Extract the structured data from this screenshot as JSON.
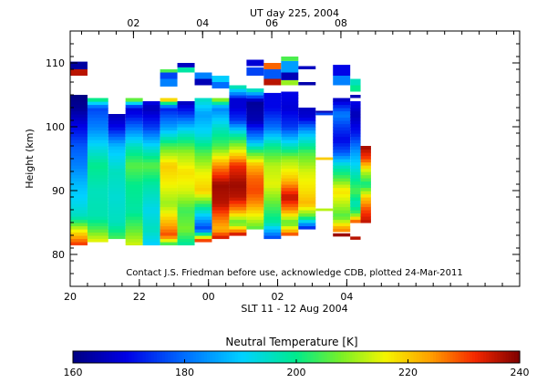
{
  "chart_data": {
    "type": "heatmap",
    "title_top": "UT day 225, 2004",
    "xlabel": "SLT 11 - 12 Aug 2004",
    "ylabel": "Height (km)",
    "note": "Contact J.S. Friedman before use, acknowledge CDB, plotted 24-Mar-2011",
    "x_range_hours": [
      20,
      33
    ],
    "ylim": [
      75,
      115
    ],
    "y_ticks": [
      80,
      90,
      100,
      110
    ],
    "bottom_x_ticks": [
      {
        "value": 20,
        "label": "20"
      },
      {
        "value": 22,
        "label": "22"
      },
      {
        "value": 24,
        "label": "00"
      },
      {
        "value": 26,
        "label": "02"
      },
      {
        "value": 28,
        "label": "04"
      }
    ],
    "top_x_ticks": [
      {
        "value": 21.83,
        "label": "02"
      },
      {
        "value": 23.83,
        "label": "04"
      },
      {
        "value": 25.83,
        "label": "06"
      },
      {
        "value": 27.83,
        "label": "08"
      }
    ],
    "colorbar": {
      "label": "Neutral Temperature [K]",
      "min": 160,
      "max": 240,
      "ticks": [
        160,
        180,
        200,
        220,
        240
      ]
    },
    "columns": [
      {
        "x0": 20.0,
        "x1": 20.5,
        "profile": [
          [
            81.5,
            232
          ],
          [
            83,
            222
          ],
          [
            84,
            214
          ],
          [
            85,
            204
          ],
          [
            86,
            196
          ],
          [
            88,
            192
          ],
          [
            91,
            188
          ],
          [
            94,
            182
          ],
          [
            97,
            178
          ],
          [
            100,
            170
          ],
          [
            103,
            162
          ],
          [
            105,
            160
          ]
        ],
        "extras": [
          [
            108,
            109,
            236
          ],
          [
            109,
            110.2,
            163
          ]
        ]
      },
      {
        "x0": 20.5,
        "x1": 21.1,
        "profile": [
          [
            82,
            216
          ],
          [
            84,
            205
          ],
          [
            86,
            197
          ],
          [
            90,
            196
          ],
          [
            94,
            200
          ],
          [
            97,
            192
          ],
          [
            100,
            182
          ],
          [
            103,
            176
          ],
          [
            104.5,
            205
          ]
        ],
        "extras": []
      },
      {
        "x0": 21.1,
        "x1": 21.6,
        "profile": [
          [
            82.5,
            205
          ],
          [
            85,
            196
          ],
          [
            89,
            194
          ],
          [
            93,
            196
          ],
          [
            97,
            188
          ],
          [
            100,
            170
          ],
          [
            102,
            165
          ]
        ],
        "extras": []
      },
      {
        "x0": 21.6,
        "x1": 22.1,
        "profile": [
          [
            81.5,
            214
          ],
          [
            84,
            206
          ],
          [
            87,
            198
          ],
          [
            91,
            200
          ],
          [
            94,
            206
          ],
          [
            97,
            196
          ],
          [
            100,
            180
          ],
          [
            102,
            170
          ],
          [
            103,
            168
          ],
          [
            104.5,
            214
          ]
        ],
        "extras": []
      },
      {
        "x0": 22.1,
        "x1": 22.6,
        "profile": [
          [
            81.5,
            190
          ],
          [
            84,
            196
          ],
          [
            87,
            192
          ],
          [
            91,
            198
          ],
          [
            94,
            206
          ],
          [
            97,
            192
          ],
          [
            100,
            175
          ],
          [
            103,
            165
          ],
          [
            104,
            170
          ]
        ],
        "extras": []
      },
      {
        "x0": 22.6,
        "x1": 23.1,
        "profile": [
          [
            81.5,
            200
          ],
          [
            83,
            230
          ],
          [
            85,
            222
          ],
          [
            88,
            210
          ],
          [
            91,
            216
          ],
          [
            94,
            220
          ],
          [
            97,
            205
          ],
          [
            100,
            185
          ],
          [
            103,
            172
          ],
          [
            104.5,
            228
          ]
        ],
        "extras": [
          [
            106.3,
            107.5,
            182
          ],
          [
            107.5,
            108.5,
            176
          ],
          [
            108.5,
            109,
            205
          ]
        ]
      },
      {
        "x0": 23.1,
        "x1": 23.6,
        "profile": [
          [
            81.5,
            198
          ],
          [
            84,
            208
          ],
          [
            87,
            204
          ],
          [
            90,
            214
          ],
          [
            93,
            218
          ],
          [
            96,
            210
          ],
          [
            99,
            195
          ],
          [
            102,
            175
          ],
          [
            104,
            165
          ]
        ],
        "extras": [
          [
            108.5,
            109.3,
            198
          ],
          [
            109.3,
            110,
            166
          ]
        ]
      },
      {
        "x0": 23.6,
        "x1": 24.1,
        "profile": [
          [
            82,
            238
          ],
          [
            84,
            175
          ],
          [
            87,
            196
          ],
          [
            90,
            220
          ],
          [
            93,
            215
          ],
          [
            96,
            205
          ],
          [
            99,
            192
          ],
          [
            102,
            185
          ],
          [
            104.5,
            196
          ]
        ],
        "extras": [
          [
            106.5,
            107.5,
            165
          ],
          [
            107.5,
            108.5,
            182
          ]
        ]
      },
      {
        "x0": 24.1,
        "x1": 24.6,
        "profile": [
          [
            82.5,
            236
          ],
          [
            84,
            222
          ],
          [
            86,
            228
          ],
          [
            88,
            236
          ],
          [
            91,
            238
          ],
          [
            94,
            225
          ],
          [
            97,
            205
          ],
          [
            100,
            195
          ],
          [
            103,
            182
          ],
          [
            104.5,
            214
          ]
        ],
        "extras": [
          [
            106,
            107,
            180
          ],
          [
            107,
            108,
            190
          ]
        ]
      },
      {
        "x0": 24.6,
        "x1": 25.1,
        "profile": [
          [
            83,
            238
          ],
          [
            85,
            205
          ],
          [
            87,
            225
          ],
          [
            89,
            236
          ],
          [
            91,
            238
          ],
          [
            94,
            232
          ],
          [
            97,
            210
          ],
          [
            99,
            196
          ],
          [
            101,
            175
          ],
          [
            104,
            165
          ],
          [
            106.5,
            200
          ]
        ],
        "extras": [
          [
            103,
            104.5,
            168
          ]
        ]
      },
      {
        "x0": 25.1,
        "x1": 25.6,
        "profile": [
          [
            84,
            205
          ],
          [
            86,
            215
          ],
          [
            88,
            225
          ],
          [
            90,
            230
          ],
          [
            92,
            228
          ],
          [
            94,
            222
          ],
          [
            96,
            205
          ],
          [
            98,
            185
          ],
          [
            101,
            165
          ],
          [
            104,
            162
          ],
          [
            106,
            200
          ]
        ],
        "extras": [
          [
            108,
            109.3,
            176
          ],
          [
            109.5,
            110.5,
            168
          ]
        ]
      },
      {
        "x0": 25.6,
        "x1": 26.1,
        "profile": [
          [
            82.5,
            175
          ],
          [
            85,
            198
          ],
          [
            88,
            206
          ],
          [
            91,
            215
          ],
          [
            94,
            212
          ],
          [
            97,
            200
          ],
          [
            100,
            180
          ],
          [
            103,
            170
          ],
          [
            105.3,
            170
          ]
        ],
        "extras": [
          [
            106.5,
            107.5,
            236
          ],
          [
            107.5,
            109,
            178
          ],
          [
            109,
            110,
            228
          ]
        ]
      },
      {
        "x0": 26.1,
        "x1": 26.6,
        "profile": [
          [
            83,
            232
          ],
          [
            85,
            205
          ],
          [
            87,
            225
          ],
          [
            89,
            236
          ],
          [
            92,
            220
          ],
          [
            95,
            210
          ],
          [
            97,
            196
          ],
          [
            100,
            175
          ],
          [
            103,
            168
          ],
          [
            105.5,
            170
          ]
        ],
        "extras": [
          [
            106.5,
            107.3,
            210
          ],
          [
            107.3,
            108.5,
            165
          ],
          [
            108.5,
            110.3,
            185
          ],
          [
            110.3,
            111,
            205
          ]
        ]
      },
      {
        "x0": 26.6,
        "x1": 27.1,
        "profile": [
          [
            84,
            170
          ],
          [
            86,
            205
          ],
          [
            88,
            222
          ],
          [
            90,
            218
          ],
          [
            93,
            214
          ],
          [
            96,
            205
          ],
          [
            99,
            188
          ],
          [
            101.5,
            168
          ],
          [
            103,
            166
          ]
        ],
        "extras": [
          [
            106.5,
            107,
            164
          ],
          [
            109,
            109.5,
            166
          ]
        ]
      },
      {
        "x0": 27.1,
        "x1": 27.6,
        "profile": [],
        "extras": [
          [
            86.8,
            87.2,
            212
          ],
          [
            94.8,
            95.2,
            220
          ],
          [
            101.8,
            102.2,
            176
          ],
          [
            102.2,
            102.5,
            165
          ]
        ]
      },
      {
        "x0": 27.6,
        "x1": 28.1,
        "profile": [
          [
            84,
            225
          ],
          [
            86,
            205
          ],
          [
            88,
            212
          ],
          [
            90,
            218
          ],
          [
            92,
            205
          ],
          [
            94,
            195
          ],
          [
            96,
            178
          ],
          [
            98,
            170
          ],
          [
            100,
            175
          ],
          [
            102,
            182
          ],
          [
            104.5,
            165
          ]
        ],
        "extras": [
          [
            82.8,
            83.3,
            238
          ],
          [
            83.5,
            84,
            225
          ],
          [
            106.5,
            108,
            182
          ],
          [
            108,
            109.7,
            170
          ]
        ]
      },
      {
        "x0": 28.1,
        "x1": 28.4,
        "profile": [
          [
            85,
            232
          ],
          [
            86.5,
            205
          ],
          [
            88,
            196
          ],
          [
            90,
            205
          ],
          [
            93,
            195
          ],
          [
            96,
            185
          ],
          [
            99,
            172
          ],
          [
            102,
            165
          ],
          [
            104,
            170
          ]
        ],
        "extras": [
          [
            82.3,
            82.8,
            236
          ],
          [
            104.5,
            105,
            165
          ],
          [
            105.5,
            106.5,
            200
          ],
          [
            106.5,
            107.5,
            196
          ]
        ]
      },
      {
        "x0": 28.4,
        "x1": 28.7,
        "profile": [
          [
            85,
            236
          ],
          [
            87,
            230
          ],
          [
            89,
            220
          ],
          [
            91,
            200
          ],
          [
            93,
            212
          ],
          [
            95,
            230
          ],
          [
            97,
            238
          ]
        ],
        "extras": []
      }
    ]
  }
}
